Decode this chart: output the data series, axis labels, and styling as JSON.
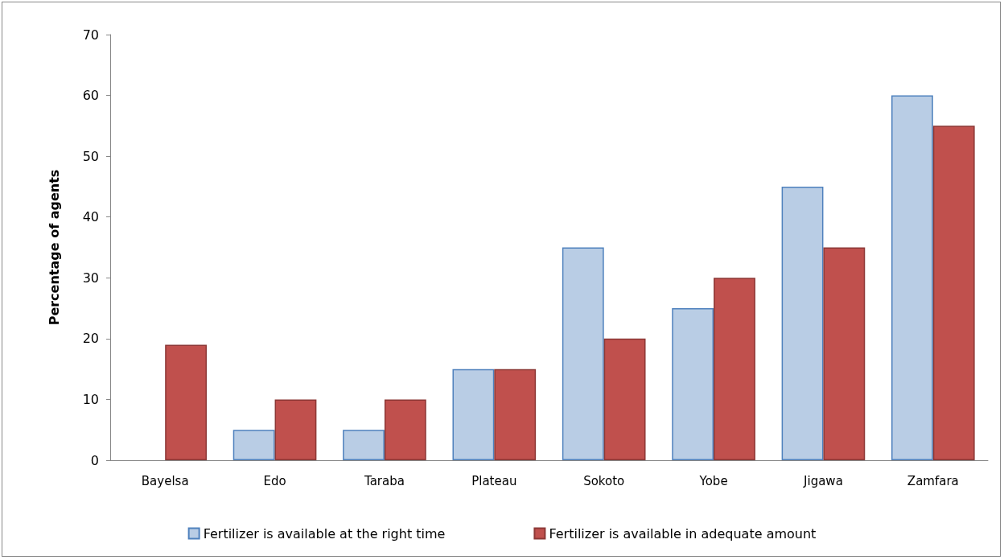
{
  "chart_data": {
    "type": "bar",
    "ylabel": "Percentage of agents",
    "categories": [
      "Bayelsa",
      "Edo",
      "Taraba",
      "Plateau",
      "Sokoto",
      "Yobe",
      "Jigawa",
      "Zamfara"
    ],
    "series": [
      {
        "name": "Fertilizer is available at the right time",
        "color": "#b9cde5",
        "values": [
          0,
          5,
          5,
          15,
          35,
          25,
          45,
          60
        ]
      },
      {
        "name": "Fertilizer is available in adequate amount",
        "color": "#c0504d",
        "values": [
          19,
          10,
          10,
          15,
          20,
          30,
          35,
          55
        ]
      }
    ],
    "ylim": [
      0,
      70
    ],
    "yticks": [
      0,
      10,
      20,
      30,
      40,
      50,
      60,
      70
    ],
    "grid": false,
    "legend": "bottom"
  }
}
